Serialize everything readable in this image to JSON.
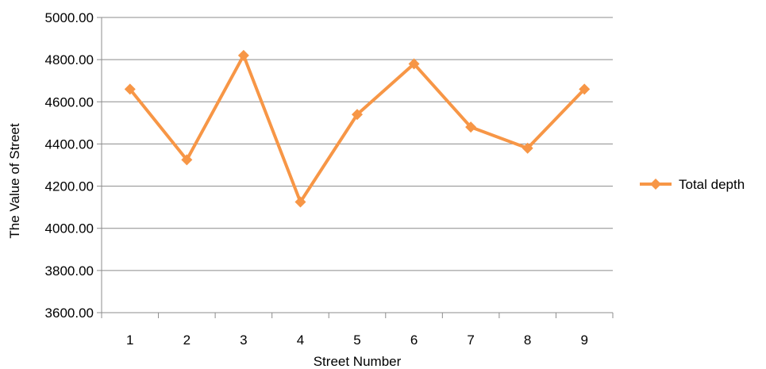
{
  "chart_data": {
    "type": "line",
    "title": "",
    "xlabel": "Street Number",
    "ylabel": "The Value of Street",
    "categories": [
      "1",
      "2",
      "3",
      "4",
      "5",
      "6",
      "7",
      "8",
      "9"
    ],
    "series": [
      {
        "name": "Total depth",
        "values": [
          4660,
          4325,
          4820,
          4125,
          4540,
          4780,
          4480,
          4380,
          4660
        ],
        "color": "#F79646",
        "marker": "diamond"
      }
    ],
    "ylim": [
      3600,
      5000
    ],
    "yticks": [
      3600,
      3800,
      4000,
      4200,
      4400,
      4600,
      4800,
      5000
    ],
    "ytick_labels": [
      "3600.00",
      "3800.00",
      "4000.00",
      "4200.00",
      "4400.00",
      "4600.00",
      "4800.00",
      "5000.00"
    ],
    "grid": "horizontal",
    "legend_position": "right"
  }
}
